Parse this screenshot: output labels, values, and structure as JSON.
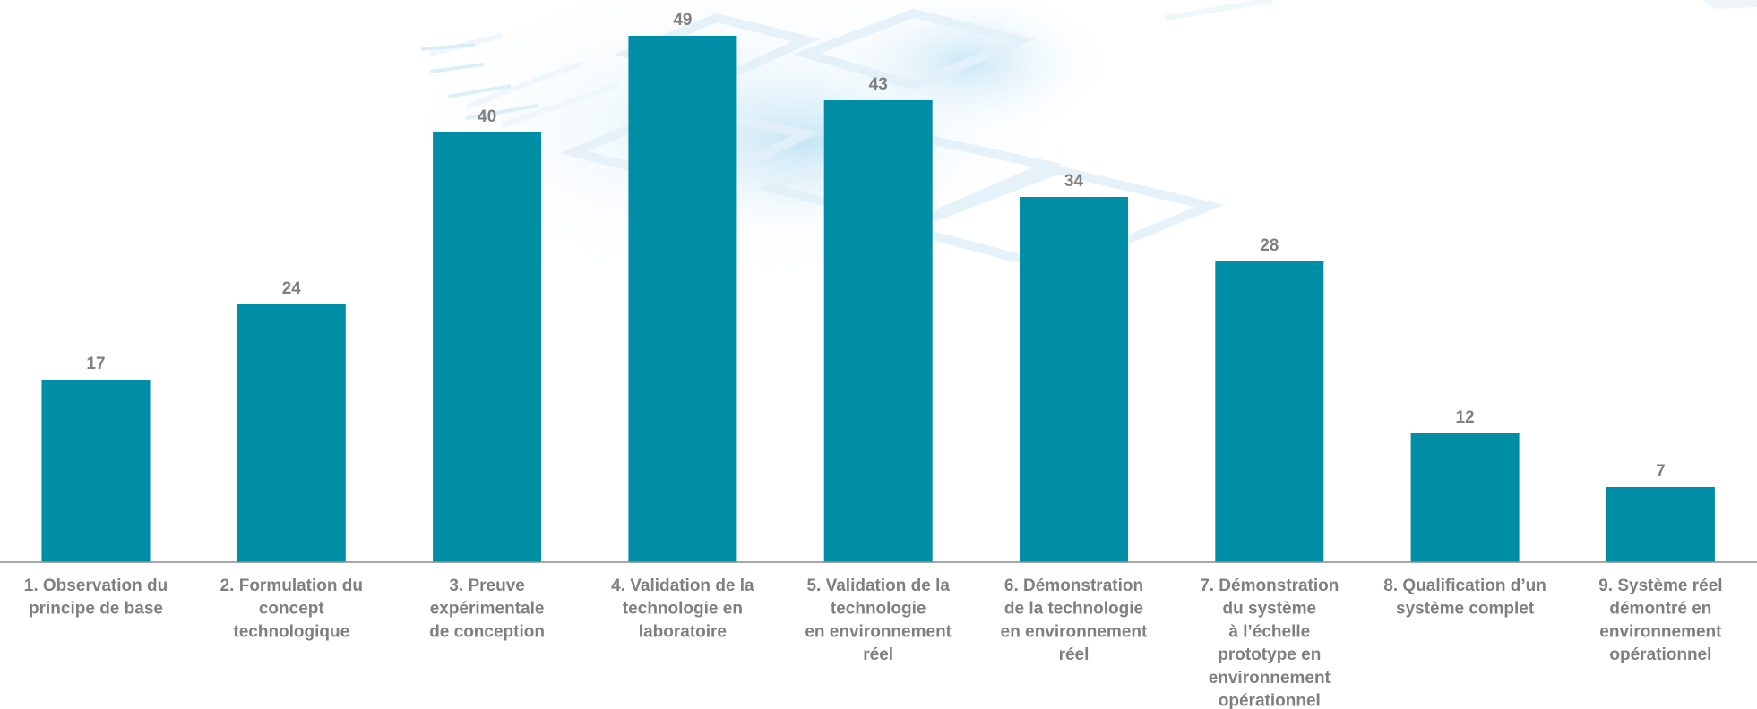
{
  "chart_data": {
    "type": "bar",
    "title": "",
    "xlabel": "",
    "ylabel": "",
    "ylim": [
      0,
      50
    ],
    "grid": false,
    "legend": "none",
    "categories": [
      [
        "1. Observation du",
        "principe de base"
      ],
      [
        "2. Formulation du",
        "concept",
        "technologique"
      ],
      [
        "3. Preuve",
        "expérimentale",
        "de conception"
      ],
      [
        "4. Validation de la",
        "technologie en",
        "laboratoire"
      ],
      [
        "5. Validation de la",
        "technologie",
        "en environnement",
        "réel"
      ],
      [
        "6. Démonstration",
        "de la technologie",
        "en environnement",
        "réel"
      ],
      [
        "7. Démonstration",
        "du système",
        "à l’échelle",
        "prototype en",
        "environnement",
        "opérationnel"
      ],
      [
        "8. Qualification d’un",
        "système complet"
      ],
      [
        "9. Système réel",
        "démontré en",
        "environnement",
        "opérationnel"
      ]
    ],
    "values": [
      17,
      24,
      40,
      49,
      43,
      34,
      28,
      12,
      7
    ],
    "colors": {
      "bar": "#008ea6",
      "label": "#7f7f7f",
      "axis": "#8c8c8c"
    }
  }
}
